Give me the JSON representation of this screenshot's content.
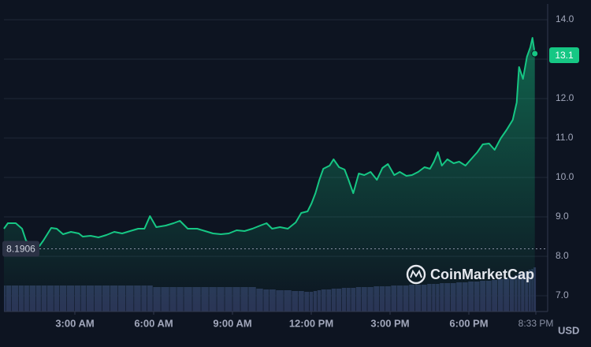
{
  "chart_data": {
    "type": "line",
    "brand": "CoinMarketCap",
    "currency": "USD",
    "open_price": 8.1906,
    "last_price": 13.1,
    "xlim": [
      0.3,
      21.0
    ],
    "ylim": [
      6.6,
      14.4
    ],
    "yticks": [
      {
        "value": 7,
        "label": "7.0"
      },
      {
        "value": 8,
        "label": "8.0"
      },
      {
        "value": 9,
        "label": "9.0"
      },
      {
        "value": 10,
        "label": "10.0"
      },
      {
        "value": 11,
        "label": "11.0"
      },
      {
        "value": 12,
        "label": "12.0"
      },
      {
        "value": 13,
        "label": "13.0"
      },
      {
        "value": 14,
        "label": "14.0"
      }
    ],
    "xticks": [
      {
        "value": 3,
        "label": "3:00 AM"
      },
      {
        "value": 6,
        "label": "6:00 AM"
      },
      {
        "value": 9,
        "label": "9:00 AM"
      },
      {
        "value": 12,
        "label": "12:00 PM"
      },
      {
        "value": 15,
        "label": "3:00 PM"
      },
      {
        "value": 18,
        "label": "6:00 PM"
      },
      {
        "value": 20.55,
        "label": "8:33 PM"
      }
    ],
    "grid": true,
    "x": [
      0.3,
      0.45,
      0.75,
      0.99,
      1.14,
      1.41,
      1.65,
      1.8,
      2.1,
      2.31,
      2.55,
      2.85,
      3.15,
      3.3,
      3.6,
      3.9,
      4.2,
      4.5,
      4.8,
      5.1,
      5.41,
      5.65,
      5.86,
      6.1,
      6.46,
      6.76,
      7.0,
      7.3,
      7.66,
      7.96,
      8.26,
      8.56,
      8.86,
      9.16,
      9.46,
      9.76,
      10.06,
      10.3,
      10.51,
      10.81,
      11.11,
      11.41,
      11.62,
      11.86,
      12.01,
      12.16,
      12.31,
      12.46,
      12.7,
      12.85,
      13.06,
      13.27,
      13.42,
      13.6,
      13.81,
      14.02,
      14.26,
      14.5,
      14.71,
      14.92,
      15.16,
      15.37,
      15.62,
      15.83,
      16.07,
      16.31,
      16.52,
      16.67,
      16.82,
      16.97,
      17.18,
      17.42,
      17.63,
      17.87,
      18.08,
      18.32,
      18.53,
      18.77,
      18.98,
      19.22,
      19.43,
      19.67,
      19.82,
      19.91,
      20.06,
      20.21,
      20.34,
      20.42,
      20.51
    ],
    "series": [
      {
        "color": "#16c784",
        "values": [
          8.7,
          8.84,
          8.84,
          8.7,
          8.4,
          8.24,
          8.26,
          8.4,
          8.72,
          8.7,
          8.56,
          8.62,
          8.58,
          8.5,
          8.52,
          8.48,
          8.54,
          8.62,
          8.58,
          8.64,
          8.7,
          8.7,
          9.02,
          8.74,
          8.78,
          8.84,
          8.9,
          8.7,
          8.7,
          8.64,
          8.58,
          8.56,
          8.58,
          8.66,
          8.64,
          8.7,
          8.78,
          8.84,
          8.7,
          8.74,
          8.7,
          8.86,
          9.1,
          9.14,
          9.34,
          9.6,
          9.94,
          10.22,
          10.3,
          10.46,
          10.26,
          10.2,
          9.94,
          9.6,
          10.1,
          10.06,
          10.14,
          9.94,
          10.24,
          10.34,
          10.06,
          10.14,
          10.04,
          10.06,
          10.14,
          10.26,
          10.22,
          10.4,
          10.64,
          10.3,
          10.46,
          10.36,
          10.4,
          10.3,
          10.46,
          10.64,
          10.84,
          10.86,
          10.7,
          11.0,
          11.2,
          11.46,
          11.9,
          12.8,
          12.5,
          13.06,
          13.3,
          13.54,
          13.14
        ]
      }
    ],
    "volume": {
      "color": "#2a3556",
      "vlim": [
        0,
        100
      ],
      "values": [
        33,
        33,
        33,
        33,
        33,
        33,
        33,
        33,
        33,
        33,
        33,
        33,
        33,
        33,
        33,
        33,
        33,
        33,
        33,
        33,
        33,
        33,
        33,
        31,
        31,
        31,
        31,
        31,
        31,
        31,
        31,
        31,
        31,
        31,
        31,
        31,
        29,
        28,
        28,
        27,
        27,
        26,
        26,
        25,
        25,
        26,
        27,
        28,
        28,
        29,
        29,
        30,
        30,
        30,
        31,
        31,
        31,
        32,
        32,
        32,
        33,
        33,
        33,
        34,
        34,
        34,
        35,
        35,
        35,
        36,
        36,
        36,
        37,
        37,
        38,
        38,
        39,
        39,
        40,
        41,
        42,
        44,
        46,
        48,
        50,
        51,
        53,
        54,
        56
      ]
    }
  }
}
